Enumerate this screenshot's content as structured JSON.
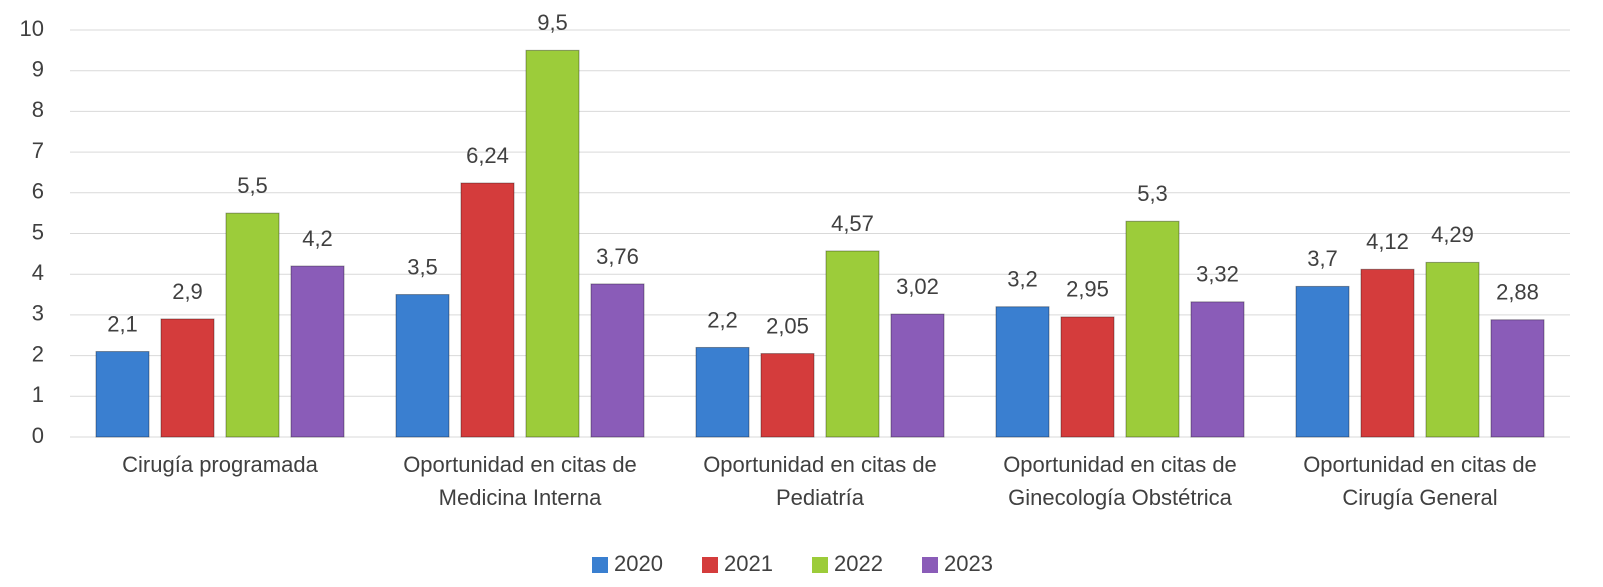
{
  "chart_data": {
    "type": "bar",
    "categories": [
      "Cirugía programada",
      "Oportunidad en citas de Medicina Interna",
      "Oportunidad en citas de Pediatría",
      "Oportunidad en citas de Ginecología Obstétrica",
      "Oportunidad en citas de Cirugía General"
    ],
    "series": [
      {
        "name": "2020",
        "color": "#3a7fd0",
        "values": [
          2.1,
          3.5,
          2.2,
          3.2,
          3.7
        ],
        "value_labels": [
          "2,1",
          "3,5",
          "2,2",
          "3,2",
          "3,7"
        ]
      },
      {
        "name": "2021",
        "color": "#d43c3c",
        "values": [
          2.9,
          6.24,
          2.05,
          2.95,
          4.12
        ],
        "value_labels": [
          "2,9",
          "6,24",
          "2,05",
          "2,95",
          "4,12"
        ]
      },
      {
        "name": "2022",
        "color": "#9ccc3a",
        "values": [
          5.5,
          9.5,
          4.57,
          5.3,
          4.29
        ],
        "value_labels": [
          "5,5",
          "9,5",
          "4,57",
          "5,3",
          "4,29"
        ]
      },
      {
        "name": "2023",
        "color": "#8a5cb8",
        "values": [
          4.2,
          3.76,
          3.02,
          3.32,
          2.88
        ],
        "value_labels": [
          "4,2",
          "3,76",
          "3,02",
          "3,32",
          "2,88"
        ]
      }
    ],
    "ylim": [
      0,
      10
    ],
    "yticks": [
      0,
      1,
      2,
      3,
      4,
      5,
      6,
      7,
      8,
      9,
      10
    ],
    "grid": true,
    "legend": "bottom"
  }
}
